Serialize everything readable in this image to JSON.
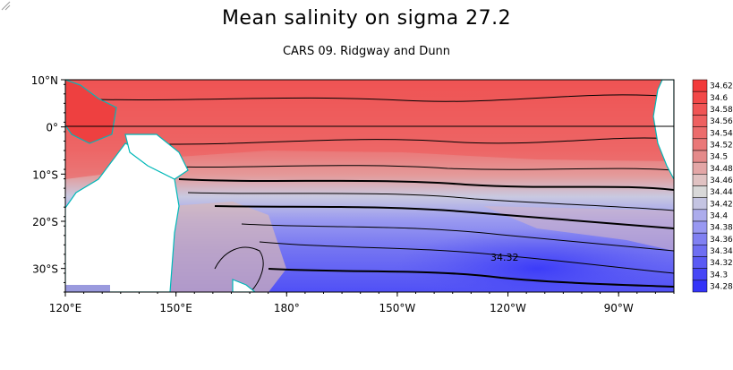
{
  "title": "Mean salinity on sigma 27.2",
  "subtitle": "CARS 09. Ridgway and Dunn",
  "map": {
    "lon_range": [
      120,
      285
    ],
    "lat_range": [
      -35,
      10
    ],
    "lat_ticks": [
      {
        "value": 10,
        "label": "10°N"
      },
      {
        "value": 0,
        "label": "0°"
      },
      {
        "value": -10,
        "label": "10°S"
      },
      {
        "value": -20,
        "label": "20°S"
      },
      {
        "value": -30,
        "label": "30°S"
      }
    ],
    "lon_ticks": [
      {
        "value": 120,
        "label": "120°E"
      },
      {
        "value": 150,
        "label": "150°E"
      },
      {
        "value": 180,
        "label": "180°"
      },
      {
        "value": 210,
        "label": "150°W"
      },
      {
        "value": 240,
        "label": "120°W"
      },
      {
        "value": 270,
        "label": "90°W"
      }
    ],
    "contour_label": "34.32",
    "land_color": "#ffffff",
    "coast_color": "#00b8b8"
  },
  "colorbar": {
    "levels": [
      "34.62",
      "34.6",
      "34.58",
      "34.56",
      "34.54",
      "34.52",
      "34.5",
      "34.48",
      "34.46",
      "34.44",
      "34.42",
      "34.4",
      "34.38",
      "34.36",
      "34.34",
      "34.32",
      "34.3",
      "34.28"
    ],
    "colors": [
      "#f23a3a",
      "#f24848",
      "#f05454",
      "#ee6060",
      "#ec6c6c",
      "#ea7878",
      "#e48a8a",
      "#e3a6a6",
      "#e0c2c2",
      "#d8d8d8",
      "#c4c4e2",
      "#acacec",
      "#9898f2",
      "#8080f2",
      "#6e6ef2",
      "#5a5af4",
      "#4646f6",
      "#3434f8"
    ]
  }
}
